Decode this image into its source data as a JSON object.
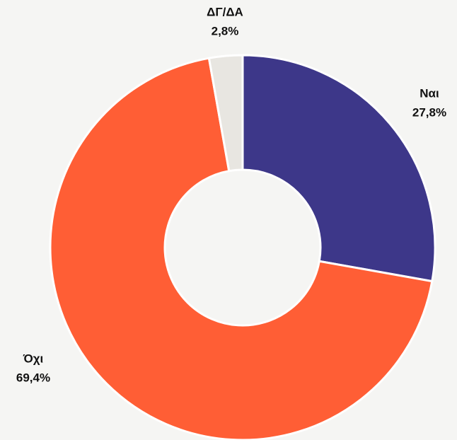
{
  "chart_data": {
    "type": "donut",
    "categories": [
      "Ναι",
      "Όχι",
      "ΔΓ/ΔΑ"
    ],
    "values": [
      27.8,
      69.4,
      2.8
    ],
    "value_labels": [
      "27,8%",
      "69,4%",
      "2,8%"
    ],
    "colors": [
      "#3d3789",
      "#ff5e35",
      "#e8e6e1"
    ]
  }
}
